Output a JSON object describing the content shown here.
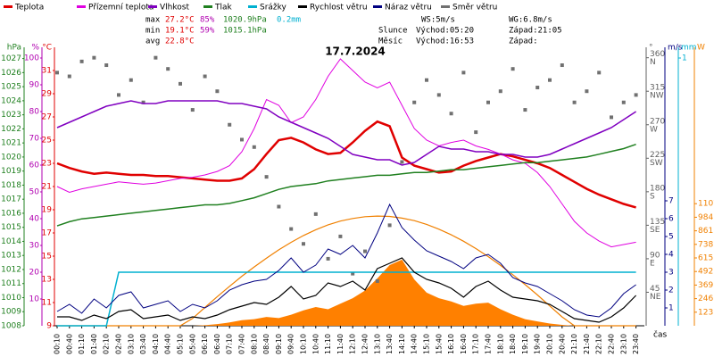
{
  "chart_data": {
    "type": "line",
    "title": "17.7.2024",
    "x_label": "čas",
    "categories": [
      "00:10",
      "00:40",
      "01:10",
      "01:40",
      "02:10",
      "02:40",
      "03:10",
      "03:40",
      "04:10",
      "04:40",
      "05:10",
      "05:40",
      "06:10",
      "06:40",
      "07:10",
      "07:40",
      "08:10",
      "08:40",
      "09:10",
      "09:40",
      "10:10",
      "10:40",
      "11:10",
      "11:40",
      "12:10",
      "12:40",
      "13:10",
      "13:40",
      "14:10",
      "14:40",
      "15:10",
      "15:40",
      "16:10",
      "16:40",
      "17:10",
      "17:40",
      "18:10",
      "18:40",
      "19:10",
      "19:40",
      "20:10",
      "20:40",
      "21:10",
      "21:40",
      "22:10",
      "22:40",
      "23:10",
      "23:40"
    ],
    "axes": [
      {
        "unit": "hPa",
        "side": "left",
        "color": "#208020",
        "lim": [
          1008,
          1027.8
        ],
        "ticks": [
          1008,
          1009,
          1010,
          1011,
          1012,
          1013,
          1014,
          1015,
          1016,
          1017,
          1018,
          1019,
          1020,
          1021,
          1022,
          1023,
          1024,
          1025,
          1026,
          1027
        ]
      },
      {
        "unit": "%",
        "side": "left",
        "color": "#b000b0",
        "lim": [
          0,
          104
        ],
        "ticks": [
          10,
          20,
          30,
          40,
          50,
          60,
          70,
          80,
          90,
          100
        ]
      },
      {
        "unit": "°C",
        "side": "left",
        "color": "#e00000",
        "lim": [
          9,
          33
        ],
        "ticks": [
          9,
          11,
          13,
          15,
          17,
          19,
          21,
          23,
          25,
          27,
          29,
          31
        ]
      },
      {
        "unit": "°",
        "side": "right",
        "color": "#606060",
        "lim": [
          0,
          374
        ],
        "ticks": [
          45,
          90,
          135,
          180,
          225,
          270,
          315,
          360
        ],
        "tick_names": [
          "NE",
          "E",
          "SE",
          "S",
          "SW",
          "W",
          "NW",
          "N"
        ]
      },
      {
        "unit": "m/s",
        "side": "right",
        "color": "#000080",
        "lim": [
          0,
          15.6
        ],
        "ticks": [
          1,
          2,
          3,
          4,
          5,
          6,
          7
        ]
      },
      {
        "unit": "mm",
        "side": "right",
        "color": "#00b0d0",
        "lim": [
          0,
          1.04
        ],
        "ticks": [
          1
        ]
      },
      {
        "unit": "W",
        "side": "right",
        "color": "#f08000",
        "lim": [
          0,
          2525
        ],
        "ticks": [
          123,
          246,
          369,
          492,
          615,
          738,
          861,
          984,
          1107
        ]
      }
    ],
    "solar": {
      "color": "#ff8000",
      "axis": "W",
      "values": [
        0,
        0,
        0,
        0,
        0,
        0,
        0,
        0,
        0,
        0,
        0,
        0,
        5,
        15,
        30,
        50,
        60,
        80,
        70,
        100,
        140,
        170,
        150,
        200,
        250,
        320,
        430,
        550,
        600,
        420,
        300,
        250,
        220,
        180,
        200,
        210,
        150,
        100,
        60,
        40,
        20,
        8,
        0,
        0,
        0,
        0,
        0,
        0
      ]
    },
    "clear_sky": {
      "color": "#f08000",
      "axis": "W",
      "values": [
        0,
        0,
        0,
        0,
        0,
        0,
        0,
        0,
        0,
        0,
        0,
        66,
        166,
        264,
        358,
        449,
        533,
        613,
        689,
        757,
        818,
        871,
        915,
        949,
        973,
        989,
        995,
        991,
        976,
        953,
        919,
        876,
        825,
        766,
        700,
        627,
        547,
        463,
        373,
        279,
        180,
        80,
        0,
        0,
        0,
        0,
        0,
        0
      ]
    },
    "series": [
      {
        "name": "Teplota",
        "color": "#e00000",
        "axis": "°C",
        "kind": "line",
        "width": 2.5,
        "values": [
          23,
          22.6,
          22.3,
          22.1,
          22.2,
          22.1,
          22,
          22,
          21.9,
          21.9,
          21.8,
          21.7,
          21.6,
          21.5,
          21.5,
          21.7,
          22.5,
          23.8,
          25,
          25.2,
          24.8,
          24.2,
          23.8,
          23.9,
          24.8,
          25.8,
          26.6,
          26.2,
          23.5,
          22.8,
          22.5,
          22.2,
          22.3,
          22.8,
          23.2,
          23.5,
          23.8,
          23.6,
          23.3,
          23,
          22.6,
          22,
          21.4,
          20.8,
          20.3,
          19.9,
          19.5,
          19.2
        ]
      },
      {
        "name": "Přízemní teplota",
        "color": "#e000e0",
        "axis": "°C",
        "kind": "line",
        "width": 1,
        "values": [
          21,
          20.5,
          20.8,
          21,
          21.2,
          21.4,
          21.3,
          21.2,
          21.3,
          21.5,
          21.7,
          21.8,
          22,
          22.3,
          22.8,
          24,
          26,
          28.5,
          28,
          26.5,
          27,
          28.5,
          30.5,
          32,
          31,
          30,
          29.5,
          30,
          28,
          26,
          25,
          24.5,
          24.8,
          25,
          24.5,
          24.2,
          23.8,
          23.3,
          23,
          22.2,
          21,
          19.5,
          18,
          17,
          16.3,
          15.8,
          16,
          16.2
        ]
      },
      {
        "name": "Vlhkost",
        "color": "#8000c0",
        "axis": "%",
        "kind": "line",
        "width": 1.5,
        "values": [
          74,
          76,
          78,
          80,
          82,
          83,
          84,
          83,
          83,
          84,
          84,
          84,
          84,
          84,
          83,
          83,
          82,
          81,
          78,
          76,
          74,
          72,
          70,
          67,
          64,
          63,
          62,
          62,
          60,
          61,
          64,
          67,
          66,
          66,
          65,
          65,
          64,
          64,
          63,
          63,
          64,
          66,
          68,
          70,
          72,
          74,
          77,
          80
        ]
      },
      {
        "name": "Tlak",
        "color": "#208020",
        "axis": "hPa",
        "kind": "line",
        "width": 1.5,
        "values": [
          1015.1,
          1015.4,
          1015.6,
          1015.7,
          1015.8,
          1015.9,
          1016,
          1016.1,
          1016.2,
          1016.3,
          1016.4,
          1016.5,
          1016.6,
          1016.6,
          1016.7,
          1016.9,
          1017.1,
          1017.4,
          1017.7,
          1017.9,
          1018,
          1018.1,
          1018.3,
          1018.4,
          1018.5,
          1018.6,
          1018.7,
          1018.7,
          1018.8,
          1018.9,
          1018.9,
          1019,
          1019.1,
          1019.1,
          1019.2,
          1019.3,
          1019.4,
          1019.5,
          1019.6,
          1019.6,
          1019.7,
          1019.8,
          1019.9,
          1020,
          1020.2,
          1020.4,
          1020.6,
          1020.9
        ]
      },
      {
        "name": "Srážky",
        "color": "#00b0d0",
        "axis": "mm",
        "kind": "line",
        "width": 1.5,
        "values": [
          0,
          0,
          0,
          0,
          0,
          0.2,
          0.2,
          0.2,
          0.2,
          0.2,
          0.2,
          0.2,
          0.2,
          0.2,
          0.2,
          0.2,
          0.2,
          0.2,
          0.2,
          0.2,
          0.2,
          0.2,
          0.2,
          0.2,
          0.2,
          0.2,
          0.2,
          0.2,
          0.2,
          0.2,
          0.2,
          0.2,
          0.2,
          0.2,
          0.2,
          0.2,
          0.2,
          0.2,
          0.2,
          0.2,
          0.2,
          0.2,
          0.2,
          0.2,
          0.2,
          0.2,
          0.2,
          0.2
        ]
      },
      {
        "name": "Rychlost větru",
        "color": "#000000",
        "axis": "m/s",
        "kind": "line",
        "width": 1.2,
        "values": [
          0.5,
          0.5,
          0.3,
          0.6,
          0.4,
          0.8,
          0.9,
          0.4,
          0.5,
          0.6,
          0.3,
          0.5,
          0.4,
          0.6,
          0.9,
          1.1,
          1.3,
          1.2,
          1.6,
          2.2,
          1.5,
          1.7,
          2.4,
          2.2,
          2.5,
          2,
          3.2,
          3.5,
          3.8,
          3,
          2.6,
          2.4,
          2.1,
          1.6,
          2.2,
          2.5,
          2,
          1.6,
          1.5,
          1.4,
          1.2,
          0.8,
          0.4,
          0.3,
          0.2,
          0.5,
          1,
          1.7
        ]
      },
      {
        "name": "Náraz větru",
        "color": "#000080",
        "axis": "m/s",
        "kind": "line",
        "width": 1,
        "values": [
          0.8,
          1.2,
          0.7,
          1.5,
          1,
          1.7,
          1.9,
          1,
          1.2,
          1.4,
          0.8,
          1.2,
          1,
          1.4,
          2,
          2.3,
          2.5,
          2.6,
          3.1,
          3.8,
          3,
          3.4,
          4.3,
          4,
          4.5,
          3.8,
          5.2,
          6.8,
          5.5,
          4.8,
          4.2,
          3.9,
          3.6,
          3.2,
          3.8,
          4,
          3.5,
          2.7,
          2.4,
          2.2,
          1.8,
          1.4,
          0.9,
          0.6,
          0.5,
          1,
          1.8,
          2.3
        ]
      },
      {
        "name": "Směr větru",
        "color": "#707070",
        "axis": "°",
        "kind": "scatter",
        "values": [
          340,
          335,
          355,
          360,
          350,
          310,
          330,
          300,
          360,
          345,
          325,
          290,
          335,
          315,
          270,
          250,
          240,
          200,
          160,
          130,
          110,
          150,
          90,
          120,
          70,
          100,
          60,
          135,
          220,
          300,
          330,
          310,
          285,
          340,
          260,
          300,
          315,
          345,
          290,
          320,
          330,
          350,
          300,
          315,
          340,
          280,
          300,
          310
        ]
      }
    ],
    "stats": {
      "rows": [
        {
          "label": "max",
          "values": [
            "27.2°C",
            "85%",
            "1020.9hPa",
            "0.2mm"
          ]
        },
        {
          "label": "min",
          "values": [
            "19.1°C",
            "59%",
            "1015.1hPa"
          ]
        },
        {
          "label": "avg",
          "values": [
            "22.8°C"
          ]
        }
      ],
      "wind": [
        "WS:5m/s",
        "WG:6.8m/s"
      ],
      "sun": {
        "label": "Slunce",
        "rise": "Východ:05:20",
        "set": "Západ:21:05"
      },
      "moon": {
        "label": "Měsíc",
        "rise": "Východ:16:53",
        "set": "Západ:"
      }
    }
  }
}
